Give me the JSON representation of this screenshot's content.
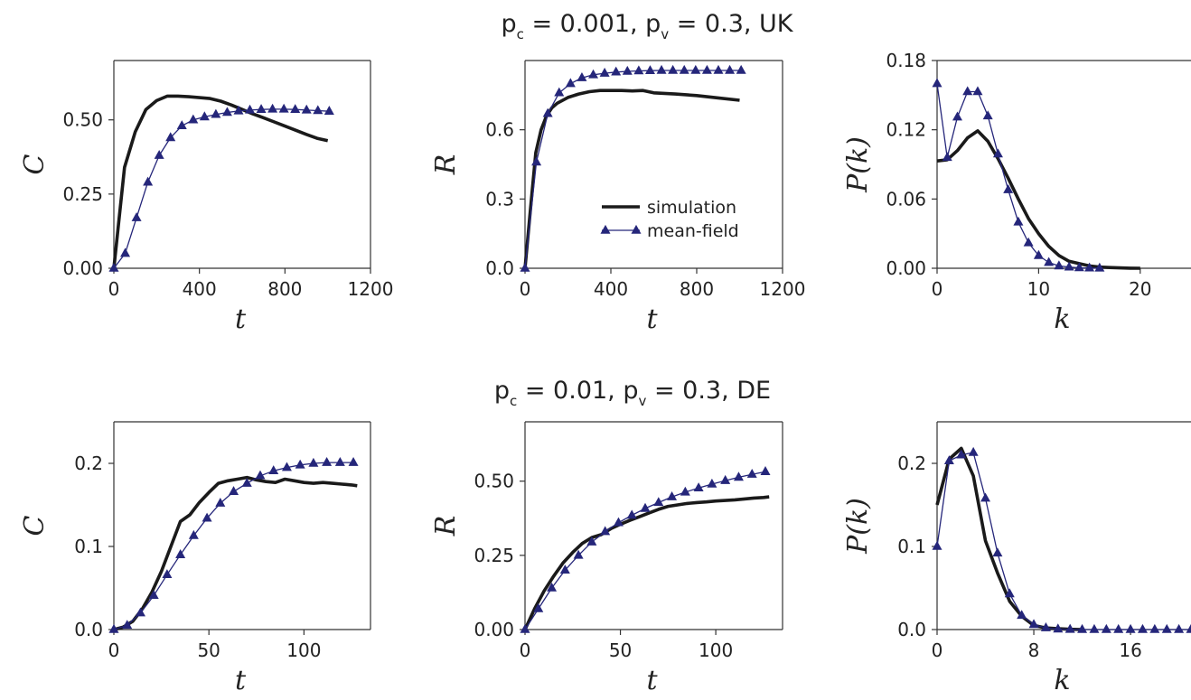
{
  "figure": {
    "rows": [
      {
        "title": {
          "p1": "p",
          "s1": "c",
          "v1": " = 0.001, ",
          "p2": "p",
          "s2": "v",
          "v2": " = 0.3, UK"
        }
      },
      {
        "title": {
          "p1": "p",
          "s1": "c",
          "v1": " = 0.01,  ",
          "p2": "p",
          "s2": "v",
          "v2": " = 0.3, DE"
        }
      }
    ],
    "legend": {
      "simulation": "simulation",
      "mean_field": "mean-field",
      "location": "lower-right"
    }
  },
  "colors": {
    "simulation": "#1a1a1a",
    "mean_field": "#25267a",
    "axes": "#333333"
  },
  "chart_data": [
    {
      "id": "uk-C",
      "type": "line",
      "xlabel": "t",
      "ylabel": "C",
      "xlim": [
        0,
        1200
      ],
      "ylim": [
        0,
        0.7
      ],
      "xticks": [
        0,
        400,
        800,
        1200
      ],
      "xtick_labels": [
        "0",
        "400",
        "800",
        "1200"
      ],
      "yticks": [
        0,
        0.25,
        0.5
      ],
      "ytick_labels": [
        "0.00",
        "0.25",
        "0.50"
      ],
      "series": [
        {
          "name": "simulation",
          "x": [
            0,
            50,
            100,
            150,
            200,
            250,
            300,
            350,
            400,
            450,
            500,
            550,
            600,
            650,
            700,
            750,
            800,
            850,
            900,
            950,
            1000
          ],
          "y": [
            0,
            0.34,
            0.46,
            0.535,
            0.565,
            0.58,
            0.58,
            0.578,
            0.575,
            0.572,
            0.563,
            0.55,
            0.535,
            0.52,
            0.507,
            0.493,
            0.479,
            0.465,
            0.451,
            0.438,
            0.43
          ]
        },
        {
          "name": "mean-field",
          "x": [
            0,
            53,
            106,
            159,
            212,
            265,
            318,
            371,
            424,
            477,
            530,
            583,
            636,
            689,
            742,
            795,
            848,
            901,
            954,
            1007
          ],
          "y": [
            0,
            0.05,
            0.17,
            0.29,
            0.38,
            0.44,
            0.48,
            0.5,
            0.51,
            0.518,
            0.525,
            0.53,
            0.533,
            0.535,
            0.536,
            0.536,
            0.535,
            0.533,
            0.531,
            0.529
          ]
        }
      ]
    },
    {
      "id": "uk-R",
      "type": "line",
      "xlabel": "t",
      "ylabel": "R",
      "xlim": [
        0,
        1200
      ],
      "ylim": [
        0,
        0.9
      ],
      "xticks": [
        0,
        400,
        800,
        1200
      ],
      "xtick_labels": [
        "0",
        "400",
        "800",
        "1200"
      ],
      "yticks": [
        0,
        0.3,
        0.6
      ],
      "ytick_labels": [
        "0.0",
        "0.3",
        "0.6"
      ],
      "show_legend": true,
      "series": [
        {
          "name": "simulation",
          "x": [
            0,
            25,
            50,
            75,
            100,
            125,
            150,
            200,
            250,
            300,
            350,
            400,
            450,
            500,
            550,
            600,
            700,
            800,
            900,
            1000
          ],
          "y": [
            0,
            0.25,
            0.5,
            0.6,
            0.66,
            0.695,
            0.715,
            0.74,
            0.755,
            0.765,
            0.77,
            0.77,
            0.77,
            0.768,
            0.77,
            0.76,
            0.755,
            0.748,
            0.738,
            0.728
          ]
        },
        {
          "name": "mean-field",
          "x": [
            0,
            53,
            106,
            159,
            212,
            265,
            318,
            371,
            424,
            477,
            530,
            583,
            636,
            689,
            742,
            795,
            848,
            901,
            954,
            1007
          ],
          "y": [
            0,
            0.46,
            0.67,
            0.76,
            0.8,
            0.825,
            0.838,
            0.845,
            0.85,
            0.853,
            0.855,
            0.856,
            0.857,
            0.857,
            0.857,
            0.857,
            0.857,
            0.857,
            0.857,
            0.857
          ]
        }
      ]
    },
    {
      "id": "uk-Pk",
      "type": "line",
      "xlabel": "k",
      "ylabel": "P(k)",
      "xlim": [
        0,
        25
      ],
      "ylim": [
        0,
        0.18
      ],
      "xticks": [
        0,
        10,
        20
      ],
      "xtick_labels": [
        "0",
        "10",
        "20"
      ],
      "yticks": [
        0,
        0.06,
        0.12,
        0.18
      ],
      "ytick_labels": [
        "0.00",
        "0.06",
        "0.12",
        "0.18"
      ],
      "series": [
        {
          "name": "simulation",
          "x": [
            0,
            1,
            2,
            3,
            4,
            5,
            6,
            7,
            8,
            9,
            10,
            11,
            12,
            13,
            14,
            15,
            16,
            17,
            18,
            19,
            20
          ],
          "y": [
            0.093,
            0.094,
            0.102,
            0.113,
            0.119,
            0.11,
            0.095,
            0.078,
            0.06,
            0.043,
            0.03,
            0.019,
            0.011,
            0.006,
            0.004,
            0.002,
            0.001,
            0.0006,
            0.0003,
            0.0001,
            0
          ]
        },
        {
          "name": "mean-field",
          "x": [
            0,
            1,
            2,
            3,
            4,
            5,
            6,
            7,
            8,
            9,
            10,
            11,
            12,
            13,
            14,
            15,
            16
          ],
          "y": [
            0.16,
            0.096,
            0.131,
            0.153,
            0.153,
            0.132,
            0.099,
            0.068,
            0.04,
            0.022,
            0.011,
            0.005,
            0.002,
            0.001,
            0.0004,
            0.0002,
            0.0001
          ]
        }
      ]
    },
    {
      "id": "de-C",
      "type": "line",
      "xlabel": "t",
      "ylabel": "C",
      "xlim": [
        0,
        135
      ],
      "ylim": [
        0,
        0.25
      ],
      "xticks": [
        0,
        50,
        100
      ],
      "xtick_labels": [
        "0",
        "50",
        "100"
      ],
      "yticks": [
        0,
        0.1,
        0.2
      ],
      "ytick_labels": [
        "0.0",
        "0.1",
        "0.2"
      ],
      "series": [
        {
          "name": "simulation",
          "x": [
            0,
            5,
            10,
            15,
            20,
            25,
            30,
            35,
            40,
            45,
            50,
            55,
            60,
            65,
            70,
            75,
            80,
            85,
            90,
            95,
            100,
            105,
            110,
            115,
            120,
            125,
            128
          ],
          "y": [
            0,
            0.003,
            0.01,
            0.025,
            0.045,
            0.07,
            0.1,
            0.13,
            0.138,
            0.153,
            0.165,
            0.176,
            0.179,
            0.181,
            0.183,
            0.18,
            0.178,
            0.177,
            0.181,
            0.179,
            0.177,
            0.176,
            0.177,
            0.176,
            0.175,
            0.174,
            0.173
          ]
        },
        {
          "name": "mean-field",
          "x": [
            0,
            7,
            14,
            21,
            28,
            35,
            42,
            49,
            56,
            63,
            70,
            77,
            84,
            91,
            98,
            105,
            112,
            119,
            126
          ],
          "y": [
            0,
            0.005,
            0.02,
            0.041,
            0.066,
            0.09,
            0.113,
            0.134,
            0.152,
            0.166,
            0.176,
            0.185,
            0.191,
            0.195,
            0.198,
            0.2,
            0.201,
            0.201,
            0.201
          ]
        }
      ]
    },
    {
      "id": "de-R",
      "type": "line",
      "xlabel": "t",
      "ylabel": "R",
      "xlim": [
        0,
        135
      ],
      "ylim": [
        0,
        0.7
      ],
      "xticks": [
        0,
        50,
        100
      ],
      "xtick_labels": [
        "0",
        "50",
        "100"
      ],
      "yticks": [
        0,
        0.25,
        0.5
      ],
      "ytick_labels": [
        "0.00",
        "0.25",
        "0.50"
      ],
      "series": [
        {
          "name": "simulation",
          "x": [
            0,
            5,
            10,
            15,
            20,
            25,
            30,
            35,
            40,
            45,
            50,
            55,
            60,
            65,
            70,
            75,
            80,
            85,
            90,
            95,
            100,
            105,
            110,
            115,
            120,
            125,
            128
          ],
          "y": [
            0,
            0.07,
            0.13,
            0.18,
            0.225,
            0.26,
            0.29,
            0.31,
            0.32,
            0.34,
            0.355,
            0.368,
            0.38,
            0.393,
            0.405,
            0.415,
            0.42,
            0.425,
            0.428,
            0.43,
            0.433,
            0.435,
            0.437,
            0.44,
            0.443,
            0.445,
            0.447
          ]
        },
        {
          "name": "mean-field",
          "x": [
            0,
            7,
            14,
            21,
            28,
            35,
            42,
            49,
            56,
            63,
            70,
            77,
            84,
            91,
            98,
            105,
            112,
            119,
            126
          ],
          "y": [
            0,
            0.07,
            0.14,
            0.2,
            0.25,
            0.295,
            0.33,
            0.36,
            0.385,
            0.408,
            0.428,
            0.447,
            0.463,
            0.477,
            0.49,
            0.502,
            0.513,
            0.523,
            0.532
          ]
        }
      ]
    },
    {
      "id": "de-Pk",
      "type": "line",
      "xlabel": "k",
      "ylabel": "P(k)",
      "xlim": [
        0,
        21
      ],
      "ylim": [
        0,
        0.25
      ],
      "xticks": [
        0,
        8,
        16
      ],
      "xtick_labels": [
        "0",
        "8",
        "16"
      ],
      "yticks": [
        0,
        0.1,
        0.2
      ],
      "ytick_labels": [
        "0.0",
        "0.1",
        "0.2"
      ],
      "series": [
        {
          "name": "simulation",
          "x": [
            0,
            1,
            2,
            3,
            4,
            5,
            6,
            7,
            8,
            9,
            10,
            11,
            12
          ],
          "y": [
            0.15,
            0.205,
            0.218,
            0.185,
            0.107,
            0.068,
            0.034,
            0.016,
            0.005,
            0.002,
            0.001,
            0.0003,
            0
          ]
        },
        {
          "name": "mean-field",
          "x": [
            0,
            1,
            2,
            3,
            4,
            5,
            6,
            7,
            8,
            9,
            10,
            11,
            12,
            13,
            14,
            15,
            16,
            17,
            18,
            19,
            20,
            21
          ],
          "y": [
            0.1,
            0.203,
            0.21,
            0.213,
            0.158,
            0.092,
            0.043,
            0.017,
            0.006,
            0.002,
            0.0006,
            0.0002,
            0,
            0,
            0,
            0,
            0,
            0,
            0,
            0,
            0,
            0
          ]
        }
      ]
    }
  ]
}
